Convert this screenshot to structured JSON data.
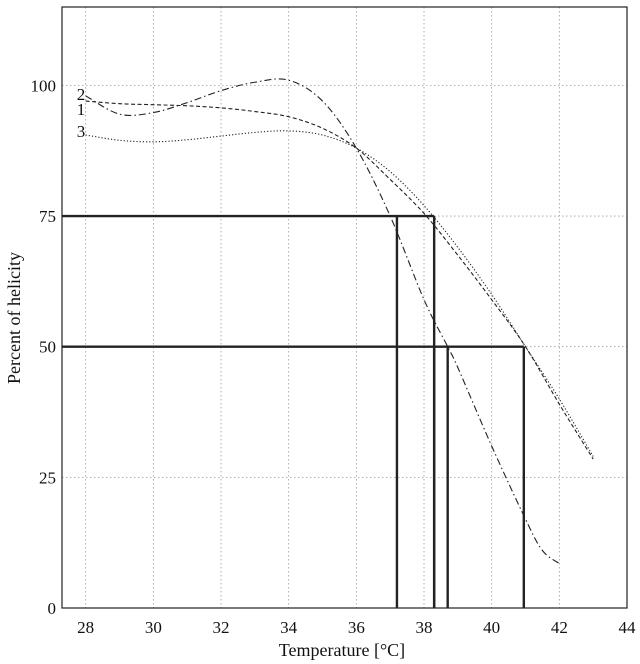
{
  "chart_data": {
    "type": "line",
    "xlabel": "Temperature [°C]",
    "ylabel": "Percent of helicity",
    "xlim": [
      27.3,
      44
    ],
    "ylim": [
      0,
      115
    ],
    "xticks": [
      28,
      30,
      32,
      34,
      36,
      38,
      40,
      42,
      44
    ],
    "yticks": [
      0,
      25,
      50,
      75,
      100
    ],
    "grid": true,
    "series": [
      {
        "name": "1",
        "dash": "dashed",
        "x": [
          28,
          29,
          30,
          31,
          32,
          33,
          34,
          35,
          36,
          37,
          38,
          39,
          40,
          41,
          42,
          43
        ],
        "y": [
          97,
          96.5,
          96.3,
          96.1,
          95.7,
          95.0,
          94.0,
          91.8,
          88.0,
          82.0,
          75.5,
          67.5,
          59.0,
          50.0,
          39.0,
          28.5
        ]
      },
      {
        "name": "2",
        "dash": "dash-dot",
        "x": [
          28,
          29,
          30,
          31,
          32,
          33,
          34,
          35,
          36,
          37,
          38,
          38.7,
          39,
          40,
          41,
          41.5,
          42
        ],
        "y": [
          98,
          94.5,
          94.8,
          96.7,
          99.0,
          100.6,
          101.0,
          97.0,
          88.0,
          75.0,
          59.0,
          50.0,
          46.0,
          31.0,
          17.0,
          11.0,
          8.5
        ]
      },
      {
        "name": "3",
        "dash": "dotted",
        "x": [
          28,
          29,
          30,
          31,
          32,
          33,
          34,
          35,
          36,
          37,
          38,
          39,
          40,
          41,
          42,
          43
        ],
        "y": [
          90.5,
          89.5,
          89.2,
          89.6,
          90.3,
          91.0,
          91.3,
          90.5,
          88.0,
          83.5,
          77.0,
          69.0,
          60.0,
          50.0,
          40.0,
          29.0
        ]
      }
    ],
    "reference_lines": [
      {
        "level": 75,
        "x_start": 27.3,
        "x_end": 38.3,
        "drops": [
          37.2,
          38.3
        ]
      },
      {
        "level": 50,
        "x_start": 27.3,
        "x_end": 40.95,
        "drops": [
          38.3,
          38.7,
          40.95
        ]
      }
    ]
  }
}
